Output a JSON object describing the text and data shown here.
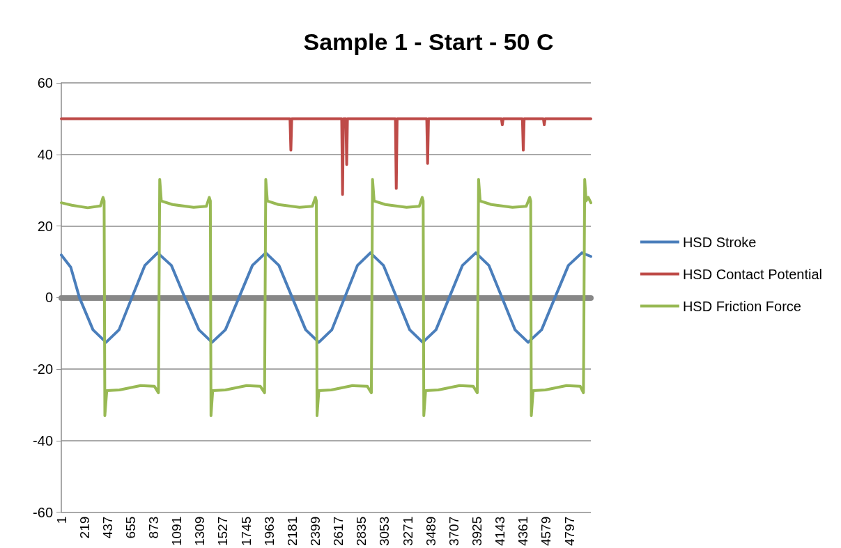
{
  "chart_data": {
    "type": "line",
    "title": "Sample 1 - Start - 50 C",
    "xlim": [
      1,
      5000
    ],
    "xticks": [
      1,
      219,
      437,
      655,
      873,
      1091,
      1309,
      1527,
      1745,
      1963,
      2181,
      2399,
      2617,
      2835,
      3053,
      3271,
      3489,
      3707,
      3925,
      4143,
      4361,
      4579,
      4797
    ],
    "ylim": [
      -60,
      60
    ],
    "yticks": [
      -60,
      -40,
      -20,
      0,
      20,
      40,
      60
    ],
    "grid": "y",
    "legend": "right",
    "marker": "none",
    "line_style": "solid",
    "series": [
      {
        "name": "HSD Stroke",
        "color": "#4a7ebb",
        "x": [
          1,
          90,
          172,
          300,
          423,
          546,
          667,
          790,
          910,
          1040,
          1167,
          1300,
          1424,
          1550,
          1678,
          1805,
          1931,
          2055,
          2181,
          2308,
          2432,
          2555,
          2676,
          2797,
          2919,
          3042,
          3166,
          3290,
          3413,
          3538,
          3663,
          3788,
          3914,
          4037,
          4161,
          4284,
          4408,
          4535,
          4661,
          4788,
          4915,
          5000
        ],
        "values": [
          11.9,
          8.5,
          0,
          -9,
          -12.5,
          -9,
          0,
          9,
          12.5,
          9,
          0,
          -9,
          -12.5,
          -9,
          0,
          9,
          12.5,
          9,
          0,
          -9,
          -12.5,
          -9,
          0,
          9,
          12.5,
          9,
          0,
          -9,
          -12.5,
          -9,
          0,
          9,
          12.5,
          9,
          0,
          -9,
          -12.5,
          -9,
          0,
          9,
          12.5,
          11.5
        ]
      },
      {
        "name": "HSD Contact Potential",
        "color": "#be4b48",
        "x": [
          1,
          2160,
          2168,
          2176,
          2648,
          2656,
          2664,
          2688,
          2695,
          2702,
          3155,
          3163,
          3171,
          3451,
          3459,
          3467,
          4156,
          4164,
          4172,
          4354,
          4362,
          4370,
          4552,
          4560,
          4568,
          5000
        ],
        "values": [
          50,
          50,
          41.2,
          50,
          50,
          28.8,
          50,
          50,
          37.2,
          50,
          50,
          30.5,
          50,
          50,
          37.5,
          50,
          50,
          48.3,
          50,
          50,
          41.2,
          50,
          50,
          48.3,
          50,
          50
        ]
      },
      {
        "name": "HSD Friction Force",
        "color": "#98b954",
        "x": [
          1,
          100,
          250,
          370,
          395,
          405,
          412,
          430,
          550,
          750,
          880,
          918,
          930,
          945,
          1050,
          1250,
          1370,
          1398,
          1408,
          1414,
          1430,
          1550,
          1750,
          1880,
          1920,
          1931,
          1946,
          2050,
          2250,
          2370,
          2400,
          2409,
          2415,
          2432,
          2550,
          2750,
          2890,
          2928,
          2939,
          2954,
          3060,
          3260,
          3380,
          3408,
          3417,
          3423,
          3440,
          3560,
          3760,
          3890,
          3928,
          3940,
          3955,
          4060,
          4260,
          4390,
          4423,
          4432,
          4438,
          4455,
          4570,
          4770,
          4900,
          4930,
          4942,
          4955,
          4975,
          5000
        ],
        "values": [
          26.5,
          25.8,
          25.1,
          25.6,
          28,
          27,
          -33,
          -26,
          -25.8,
          -24.6,
          -24.8,
          -26.6,
          33,
          27,
          26,
          25.2,
          25.5,
          28,
          27,
          -33,
          -26,
          -25.8,
          -24.6,
          -24.8,
          -26.6,
          33,
          27,
          26,
          25.2,
          25.5,
          28,
          27,
          -33,
          -26,
          -25.8,
          -24.6,
          -24.8,
          -26.6,
          33,
          27,
          26,
          25.2,
          25.5,
          28,
          27,
          -33,
          -26,
          -25.8,
          -24.6,
          -24.8,
          -26.6,
          33,
          27,
          26,
          25.2,
          25.5,
          28,
          27,
          -33,
          -26,
          -25.8,
          -24.6,
          -24.8,
          -26.6,
          33,
          27,
          28,
          26.5
        ]
      }
    ]
  }
}
